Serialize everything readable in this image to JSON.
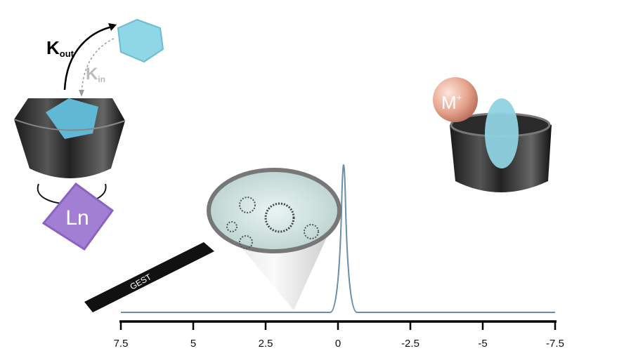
{
  "labels": {
    "k_out_main": "K",
    "k_out_sub": "out",
    "k_in_main": "K",
    "k_in_sub": "in",
    "lanthanide": "Ln",
    "metal_main": "M",
    "metal_sup": "+",
    "probe": "GEST"
  },
  "axis": {
    "range": [
      7.5,
      -7.5
    ],
    "ticks": [
      7.5,
      5,
      2.5,
      0,
      -2.5,
      -5,
      -7.5
    ]
  }
}
